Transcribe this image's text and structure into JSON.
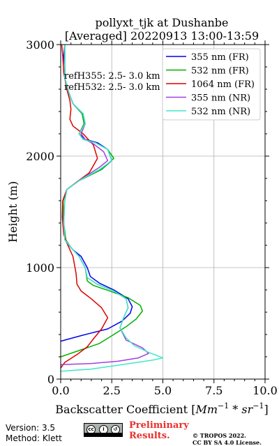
{
  "chart_data": {
    "type": "line",
    "title": "pollyxt_tjk at Dushanbe",
    "subtitle": "[Averaged] 20220913 13:00-13:59",
    "xlabel_main": "Backscatter Coefficient [",
    "xlabel_unit": "Mm",
    "xlabel_sup1": "−1",
    "xlabel_mid": " * sr",
    "xlabel_sup2": "−1",
    "xlabel_end": "]",
    "ylabel": "Height (m)",
    "xlim": [
      0,
      10
    ],
    "ylim": [
      0,
      3000
    ],
    "xticks": [
      0,
      2.5,
      5,
      7.5,
      10
    ],
    "xtick_labels": [
      "0.0",
      "2.5",
      "5.0",
      "7.5",
      "10.0"
    ],
    "yticks": [
      0,
      1000,
      2000,
      3000
    ],
    "ytick_labels": [
      "0",
      "1000",
      "2000",
      "3000"
    ],
    "grid": true,
    "legend_position": "top-right",
    "annotations": [
      "refH355:  2.5- 3.0 km",
      "refH532:  2.5- 3.0 km"
    ],
    "series": [
      {
        "name": "355 nm (FR)",
        "color": "#0000ee",
        "x": [
          0.0,
          1.0,
          2.3,
          3.0,
          3.4,
          3.5,
          3.3,
          2.6,
          1.9,
          1.45,
          1.3,
          1.0,
          0.6,
          0.3,
          0.15,
          0.1,
          0.12,
          0.3,
          0.9,
          2.0,
          2.5,
          2.3,
          1.8,
          1.2,
          0.9,
          1.15,
          1.05,
          0.6,
          0.4,
          0.2,
          0.2,
          0.15,
          0.2
        ],
        "y": [
          340,
          390,
          450,
          520,
          590,
          650,
          720,
          800,
          860,
          920,
          1000,
          1100,
          1160,
          1220,
          1300,
          1450,
          1600,
          1700,
          1780,
          1880,
          1960,
          2060,
          2120,
          2150,
          2200,
          2290,
          2380,
          2470,
          2570,
          2700,
          2800,
          2900,
          3000
        ]
      },
      {
        "name": "532 nm (FR)",
        "color": "#00b000",
        "x": [
          0.0,
          0.8,
          1.9,
          2.6,
          3.2,
          3.7,
          4.0,
          3.9,
          3.3,
          2.4,
          1.6,
          1.3,
          1.2,
          0.9,
          0.5,
          0.25,
          0.15,
          0.12,
          0.3,
          0.9,
          2.0,
          2.6,
          2.3,
          1.7,
          1.1,
          0.9,
          1.15,
          1.05,
          0.6,
          0.4,
          0.2,
          0.2,
          0.2
        ],
        "y": [
          200,
          250,
          320,
          400,
          470,
          540,
          610,
          660,
          730,
          790,
          840,
          880,
          1000,
          1100,
          1180,
          1250,
          1400,
          1600,
          1700,
          1780,
          1880,
          1980,
          2060,
          2120,
          2150,
          2200,
          2290,
          2380,
          2470,
          2570,
          2700,
          2850,
          3000
        ]
      },
      {
        "name": "1064 nm (FR)",
        "color": "#dd0000",
        "x": [
          0.0,
          0.2,
          0.8,
          1.3,
          1.6,
          2.0,
          2.3,
          2.0,
          1.5,
          1.0,
          0.8,
          0.75,
          0.6,
          0.35,
          0.15,
          0.08,
          0.1,
          0.3,
          0.8,
          1.4,
          1.8,
          1.6,
          1.1,
          0.6,
          0.45,
          0.5,
          0.45,
          0.3,
          0.15,
          0.1,
          0.05
        ],
        "y": [
          100,
          150,
          220,
          290,
          360,
          450,
          550,
          640,
          720,
          790,
          850,
          950,
          1100,
          1200,
          1300,
          1450,
          1600,
          1700,
          1770,
          1850,
          1980,
          2100,
          2200,
          2270,
          2330,
          2420,
          2500,
          2600,
          2750,
          2900,
          3000
        ]
      },
      {
        "name": "355 nm (NR)",
        "color": "#a040e0",
        "x": [
          0.0,
          1.5,
          2.8,
          3.8,
          4.3,
          4.0,
          3.2,
          2.9,
          3.1,
          3.3,
          3.2,
          2.6,
          1.8,
          1.3,
          1.2,
          0.9,
          0.5,
          0.2,
          0.15,
          0.2,
          0.3,
          0.9,
          1.9,
          2.3,
          2.1,
          1.6,
          1.2,
          1.0,
          1.2,
          1.1,
          0.6,
          0.4,
          0.2,
          0.2
        ],
        "y": [
          130,
          140,
          160,
          190,
          230,
          280,
          350,
          460,
          560,
          640,
          720,
          790,
          850,
          910,
          1000,
          1100,
          1180,
          1250,
          1400,
          1600,
          1700,
          1780,
          1900,
          1960,
          2040,
          2110,
          2150,
          2200,
          2290,
          2380,
          2470,
          2570,
          2700,
          3000
        ]
      },
      {
        "name": "532 nm (NR)",
        "color": "#40e8c8",
        "x": [
          0.0,
          1.5,
          3.0,
          4.5,
          5.0,
          4.3,
          3.6,
          3.2,
          2.9,
          3.1,
          3.3,
          3.2,
          2.6,
          1.8,
          1.3,
          1.2,
          0.9,
          0.5,
          0.2,
          0.15,
          0.2,
          0.3,
          0.9,
          1.9,
          2.5,
          2.3,
          1.7,
          1.1,
          0.9,
          1.2,
          1.1,
          0.6,
          0.4,
          0.2,
          0.2
        ],
        "y": [
          70,
          90,
          130,
          170,
          190,
          240,
          300,
          370,
          460,
          560,
          640,
          720,
          790,
          850,
          910,
          1000,
          1100,
          1180,
          1250,
          1400,
          1600,
          1700,
          1780,
          1880,
          1960,
          2060,
          2120,
          2150,
          2200,
          2290,
          2380,
          2470,
          2570,
          2700,
          3000
        ]
      }
    ]
  },
  "footer": {
    "version": "Version: 3.5",
    "method": "Method: Klett",
    "preliminary_line1": "Preliminary",
    "preliminary_line2": "Results.",
    "copyright_line1": "© TROPOS 2022.",
    "copyright_line2": "CC BY SA 4.0 License.",
    "license_badge": "cc by sa"
  }
}
